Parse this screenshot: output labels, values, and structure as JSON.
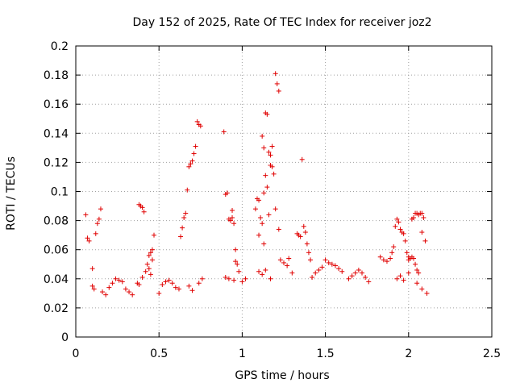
{
  "chart_data": {
    "type": "scatter",
    "title": "Day 152 of 2025, Rate Of TEC Index for receiver joz2",
    "xlabel": "GPS time / hours",
    "ylabel": "ROTI / TECUs",
    "xlim": [
      0,
      2.5
    ],
    "ylim": [
      0,
      0.2
    ],
    "x_ticks": [
      0,
      0.5,
      1,
      1.5,
      2,
      2.5
    ],
    "x_tick_labels": [
      "0",
      "0.5",
      "1",
      "1.5",
      "2",
      "2.5"
    ],
    "y_ticks": [
      0,
      0.02,
      0.04,
      0.06,
      0.08,
      0.1,
      0.12,
      0.14,
      0.16,
      0.18,
      0.2
    ],
    "y_tick_labels": [
      "0",
      "0.02",
      "0.04",
      "0.06",
      "0.08",
      "0.1",
      "0.12",
      "0.14",
      "0.16",
      "0.18",
      "0.2"
    ],
    "grid": true,
    "marker": "+",
    "color": "#e00000",
    "series": [
      {
        "name": "ROTI",
        "points": [
          [
            0.06,
            0.084
          ],
          [
            0.07,
            0.068
          ],
          [
            0.08,
            0.066
          ],
          [
            0.1,
            0.047
          ],
          [
            0.12,
            0.071
          ],
          [
            0.13,
            0.078
          ],
          [
            0.14,
            0.081
          ],
          [
            0.15,
            0.088
          ],
          [
            0.1,
            0.035
          ],
          [
            0.11,
            0.033
          ],
          [
            0.16,
            0.031
          ],
          [
            0.18,
            0.029
          ],
          [
            0.2,
            0.034
          ],
          [
            0.22,
            0.037
          ],
          [
            0.24,
            0.04
          ],
          [
            0.26,
            0.039
          ],
          [
            0.28,
            0.038
          ],
          [
            0.3,
            0.033
          ],
          [
            0.32,
            0.031
          ],
          [
            0.34,
            0.029
          ],
          [
            0.38,
            0.091
          ],
          [
            0.39,
            0.09
          ],
          [
            0.4,
            0.089
          ],
          [
            0.41,
            0.086
          ],
          [
            0.37,
            0.037
          ],
          [
            0.38,
            0.036
          ],
          [
            0.4,
            0.041
          ],
          [
            0.42,
            0.045
          ],
          [
            0.43,
            0.05
          ],
          [
            0.44,
            0.056
          ],
          [
            0.45,
            0.058
          ],
          [
            0.46,
            0.06
          ],
          [
            0.44,
            0.047
          ],
          [
            0.45,
            0.043
          ],
          [
            0.46,
            0.053
          ],
          [
            0.47,
            0.07
          ],
          [
            0.5,
            0.03
          ],
          [
            0.52,
            0.036
          ],
          [
            0.54,
            0.038
          ],
          [
            0.56,
            0.039
          ],
          [
            0.58,
            0.037
          ],
          [
            0.6,
            0.034
          ],
          [
            0.62,
            0.033
          ],
          [
            0.63,
            0.069
          ],
          [
            0.64,
            0.075
          ],
          [
            0.65,
            0.082
          ],
          [
            0.66,
            0.085
          ],
          [
            0.67,
            0.101
          ],
          [
            0.68,
            0.117
          ],
          [
            0.69,
            0.119
          ],
          [
            0.7,
            0.121
          ],
          [
            0.71,
            0.126
          ],
          [
            0.72,
            0.131
          ],
          [
            0.73,
            0.148
          ],
          [
            0.74,
            0.146
          ],
          [
            0.75,
            0.145
          ],
          [
            0.68,
            0.035
          ],
          [
            0.7,
            0.032
          ],
          [
            0.74,
            0.037
          ],
          [
            0.76,
            0.04
          ],
          [
            0.89,
            0.141
          ],
          [
            0.9,
            0.098
          ],
          [
            0.91,
            0.099
          ],
          [
            0.92,
            0.081
          ],
          [
            0.93,
            0.08
          ],
          [
            0.94,
            0.082
          ],
          [
            0.95,
            0.078
          ],
          [
            0.96,
            0.052
          ],
          [
            0.97,
            0.05
          ],
          [
            0.96,
            0.06
          ],
          [
            0.94,
            0.087
          ],
          [
            0.9,
            0.041
          ],
          [
            0.92,
            0.04
          ],
          [
            0.95,
            0.039
          ],
          [
            0.98,
            0.045
          ],
          [
            1.0,
            0.038
          ],
          [
            1.02,
            0.04
          ],
          [
            1.08,
            0.088
          ],
          [
            1.09,
            0.095
          ],
          [
            1.1,
            0.094
          ],
          [
            1.11,
            0.082
          ],
          [
            1.12,
            0.078
          ],
          [
            1.13,
            0.099
          ],
          [
            1.14,
            0.111
          ],
          [
            1.15,
            0.103
          ],
          [
            1.16,
            0.084
          ],
          [
            1.12,
            0.138
          ],
          [
            1.13,
            0.13
          ],
          [
            1.14,
            0.154
          ],
          [
            1.15,
            0.153
          ],
          [
            1.16,
            0.127
          ],
          [
            1.17,
            0.118
          ],
          [
            1.18,
            0.131
          ],
          [
            1.19,
            0.112
          ],
          [
            1.2,
            0.181
          ],
          [
            1.21,
            0.174
          ],
          [
            1.22,
            0.169
          ],
          [
            1.2,
            0.088
          ],
          [
            1.22,
            0.074
          ],
          [
            1.18,
            0.117
          ],
          [
            1.17,
            0.125
          ],
          [
            1.13,
            0.064
          ],
          [
            1.1,
            0.07
          ],
          [
            1.1,
            0.045
          ],
          [
            1.12,
            0.043
          ],
          [
            1.14,
            0.046
          ],
          [
            1.17,
            0.04
          ],
          [
            1.23,
            0.053
          ],
          [
            1.25,
            0.051
          ],
          [
            1.27,
            0.049
          ],
          [
            1.28,
            0.054
          ],
          [
            1.3,
            0.044
          ],
          [
            1.33,
            0.071
          ],
          [
            1.34,
            0.07
          ],
          [
            1.35,
            0.069
          ],
          [
            1.36,
            0.122
          ],
          [
            1.37,
            0.076
          ],
          [
            1.38,
            0.072
          ],
          [
            1.39,
            0.064
          ],
          [
            1.4,
            0.058
          ],
          [
            1.41,
            0.053
          ],
          [
            1.42,
            0.041
          ],
          [
            1.44,
            0.044
          ],
          [
            1.46,
            0.046
          ],
          [
            1.48,
            0.048
          ],
          [
            1.5,
            0.053
          ],
          [
            1.52,
            0.051
          ],
          [
            1.54,
            0.05
          ],
          [
            1.56,
            0.049
          ],
          [
            1.58,
            0.047
          ],
          [
            1.6,
            0.045
          ],
          [
            1.64,
            0.04
          ],
          [
            1.66,
            0.042
          ],
          [
            1.68,
            0.044
          ],
          [
            1.7,
            0.046
          ],
          [
            1.72,
            0.044
          ],
          [
            1.74,
            0.041
          ],
          [
            1.76,
            0.038
          ],
          [
            1.83,
            0.055
          ],
          [
            1.85,
            0.053
          ],
          [
            1.87,
            0.052
          ],
          [
            1.89,
            0.054
          ],
          [
            1.9,
            0.058
          ],
          [
            1.91,
            0.062
          ],
          [
            1.92,
            0.076
          ],
          [
            1.93,
            0.081
          ],
          [
            1.94,
            0.079
          ],
          [
            1.95,
            0.074
          ],
          [
            1.96,
            0.072
          ],
          [
            1.97,
            0.071
          ],
          [
            1.98,
            0.066
          ],
          [
            1.99,
            0.058
          ],
          [
            2.0,
            0.055
          ],
          [
            2.0,
            0.053
          ],
          [
            2.01,
            0.054
          ],
          [
            2.02,
            0.055
          ],
          [
            2.03,
            0.054
          ],
          [
            2.04,
            0.05
          ],
          [
            2.05,
            0.046
          ],
          [
            2.06,
            0.044
          ],
          [
            2.02,
            0.081
          ],
          [
            2.03,
            0.082
          ],
          [
            2.04,
            0.085
          ],
          [
            2.05,
            0.085
          ],
          [
            2.06,
            0.084
          ],
          [
            2.07,
            0.085
          ],
          [
            2.08,
            0.085
          ],
          [
            2.09,
            0.082
          ],
          [
            2.1,
            0.066
          ],
          [
            2.08,
            0.072
          ],
          [
            1.93,
            0.04
          ],
          [
            1.95,
            0.042
          ],
          [
            1.97,
            0.039
          ],
          [
            2.0,
            0.044
          ],
          [
            2.05,
            0.037
          ],
          [
            2.08,
            0.033
          ],
          [
            2.11,
            0.03
          ]
        ]
      }
    ]
  }
}
